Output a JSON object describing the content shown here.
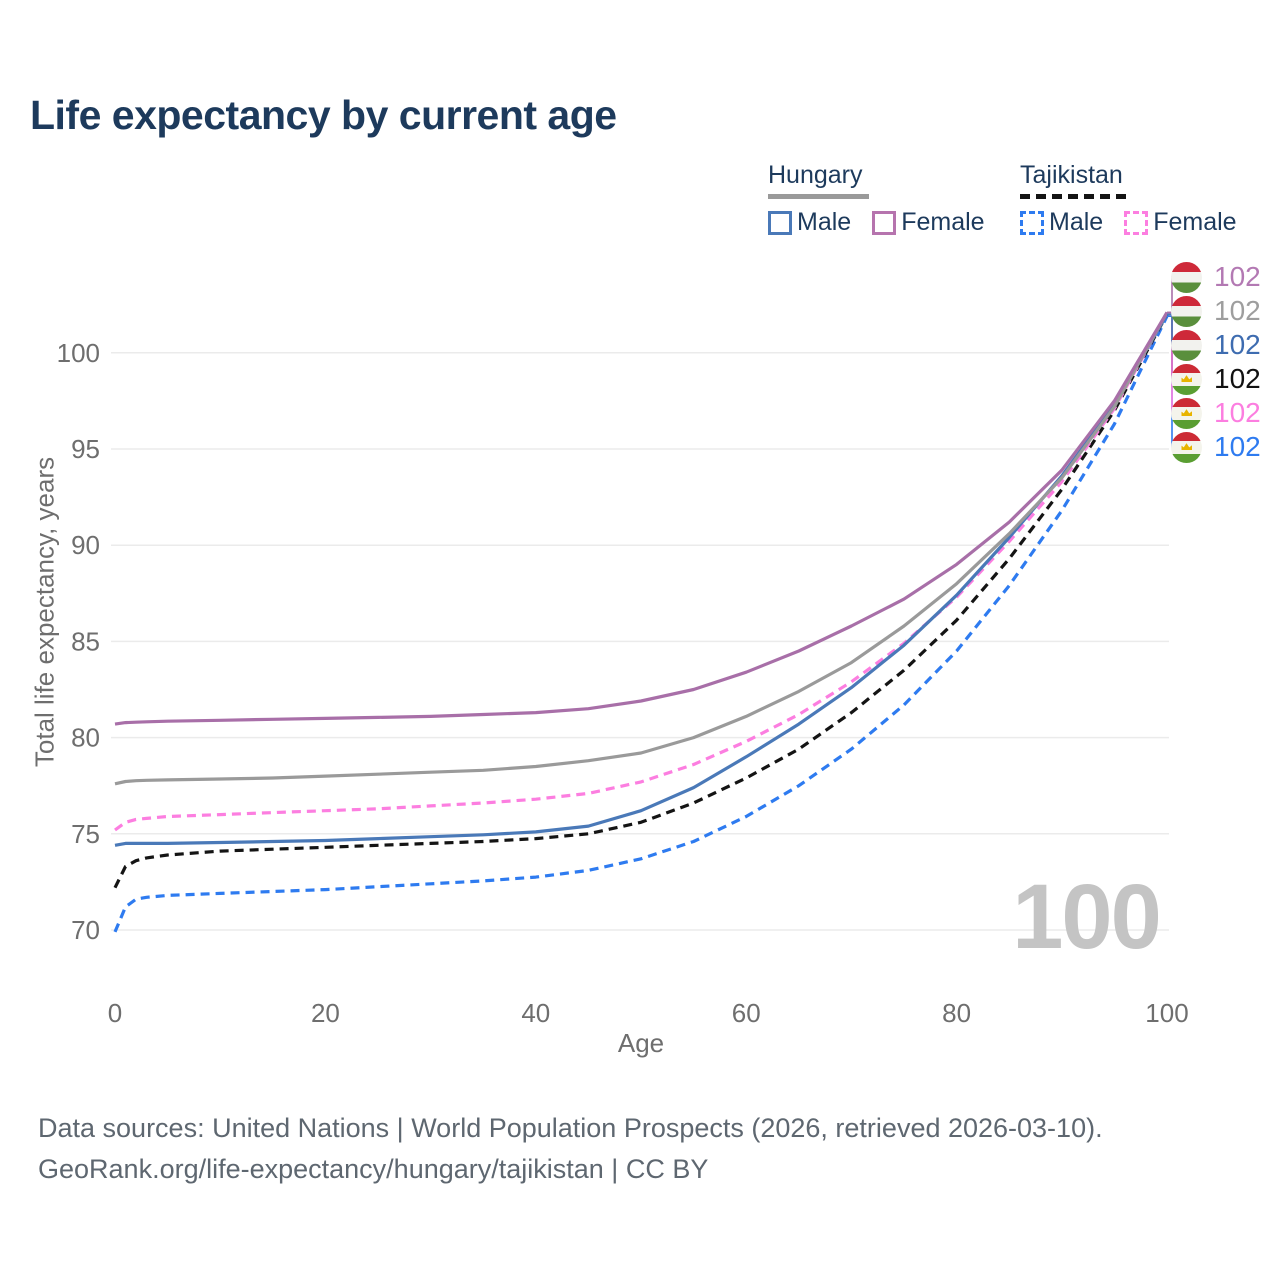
{
  "header": {
    "title": "Life expectancy by current age"
  },
  "legend": {
    "groups": [
      {
        "label": "Hungary",
        "style": "solid",
        "items": [
          {
            "label": "Male",
            "color": "#4a79b8"
          },
          {
            "label": "Female",
            "color": "#b674ae"
          }
        ]
      },
      {
        "label": "Tajikistan",
        "style": "dashed",
        "items": [
          {
            "label": "Male",
            "color": "#2e7bf0"
          },
          {
            "label": "Female",
            "color": "#fc7ee0"
          }
        ]
      }
    ]
  },
  "chart_data": {
    "type": "line",
    "title": "Life expectancy by current age",
    "xlabel": "Age",
    "ylabel": "Total life expectancy, years",
    "x_ticks": [
      0,
      20,
      40,
      60,
      80,
      100
    ],
    "y_ticks": [
      70,
      75,
      80,
      85,
      90,
      95,
      100
    ],
    "xlim": [
      0,
      100
    ],
    "ylim": [
      68.5,
      103.5
    ],
    "grid": "horizontal",
    "legend_position": "top-right",
    "watermark": "100",
    "x": [
      0,
      1,
      2,
      3,
      5,
      10,
      15,
      20,
      25,
      30,
      35,
      40,
      45,
      50,
      55,
      60,
      65,
      70,
      75,
      80,
      85,
      90,
      95,
      100
    ],
    "series": [
      {
        "id": "tajikistan-male",
        "name": "Tajikistan Male",
        "country": "Tajikistan",
        "sex": "Male",
        "color": "#2e7bf0",
        "dash": "dashed",
        "label_row": 5,
        "end_label": "102",
        "values": [
          69.9,
          71.2,
          71.6,
          71.7,
          71.8,
          71.9,
          72.0,
          72.1,
          72.25,
          72.4,
          72.55,
          72.75,
          73.1,
          73.7,
          74.6,
          75.9,
          77.5,
          79.4,
          81.7,
          84.5,
          87.9,
          91.8,
          96.3,
          101.9
        ]
      },
      {
        "id": "tajikistan-all",
        "name": "Tajikistan Both sexes",
        "country": "Tajikistan",
        "sex": "All",
        "color": "#141414",
        "dash": "dashed",
        "label_row": 3,
        "end_label": "102",
        "values": [
          72.2,
          73.3,
          73.6,
          73.75,
          73.9,
          74.1,
          74.2,
          74.3,
          74.4,
          74.5,
          74.6,
          74.75,
          75.0,
          75.6,
          76.6,
          77.9,
          79.4,
          81.3,
          83.5,
          86.1,
          89.3,
          92.9,
          97.0,
          102.0
        ]
      },
      {
        "id": "tajikistan-female",
        "name": "Tajikistan Female",
        "country": "Tajikistan",
        "sex": "Female",
        "color": "#fc7ee0",
        "dash": "dashed",
        "label_row": 4,
        "end_label": "102",
        "values": [
          75.2,
          75.6,
          75.75,
          75.8,
          75.9,
          76.0,
          76.1,
          76.2,
          76.3,
          76.45,
          76.6,
          76.8,
          77.1,
          77.7,
          78.6,
          79.8,
          81.2,
          82.9,
          84.9,
          87.3,
          90.2,
          93.3,
          97.1,
          102.05
        ]
      },
      {
        "id": "hungary-male",
        "name": "Hungary Male",
        "country": "Hungary",
        "sex": "Male",
        "color": "#4a79b8",
        "dash": "solid",
        "label_row": 2,
        "end_label": "102",
        "values": [
          74.4,
          74.5,
          74.5,
          74.5,
          74.5,
          74.55,
          74.6,
          74.65,
          74.75,
          74.85,
          74.95,
          75.1,
          75.4,
          76.2,
          77.4,
          79.0,
          80.7,
          82.6,
          84.8,
          87.4,
          90.4,
          93.6,
          97.3,
          102.0
        ]
      },
      {
        "id": "hungary-all",
        "name": "Hungary Both sexes",
        "country": "Hungary",
        "sex": "All",
        "color": "#9a9a9a",
        "dash": "solid",
        "label_row": 1,
        "end_label": "102",
        "values": [
          77.6,
          77.72,
          77.76,
          77.78,
          77.8,
          77.85,
          77.9,
          78.0,
          78.1,
          78.2,
          78.3,
          78.5,
          78.8,
          79.2,
          80.0,
          81.1,
          82.4,
          83.9,
          85.8,
          88.0,
          90.6,
          93.5,
          97.2,
          102.1
        ]
      },
      {
        "id": "hungary-female",
        "name": "Hungary Female",
        "country": "Hungary",
        "sex": "Female",
        "color": "#a86fa8",
        "dash": "solid",
        "label_row": 0,
        "end_label": "102",
        "values": [
          80.7,
          80.78,
          80.8,
          80.82,
          80.85,
          80.9,
          80.95,
          81.0,
          81.05,
          81.1,
          81.2,
          81.3,
          81.5,
          81.9,
          82.5,
          83.4,
          84.5,
          85.8,
          87.2,
          89.0,
          91.2,
          93.9,
          97.5,
          102.1
        ]
      }
    ]
  },
  "end_labels": [
    {
      "value": "102",
      "flag": "hungary",
      "color": "#b379b3"
    },
    {
      "value": "102",
      "flag": "hungary",
      "color": "#9e9e9e"
    },
    {
      "value": "102",
      "flag": "hungary",
      "color": "#3e6cb0"
    },
    {
      "value": "102",
      "flag": "tajikistan",
      "color": "#111111"
    },
    {
      "value": "102",
      "flag": "tajikistan",
      "color": "#fc7ee0"
    },
    {
      "value": "102",
      "flag": "tajikistan",
      "color": "#2e7bf0"
    }
  ],
  "footer": {
    "line1": "Data sources: United Nations | World Population Prospects (2026, retrieved 2026-03-10).",
    "line2": "GeoRank.org/life-expectancy/hungary/tajikistan | CC BY"
  }
}
